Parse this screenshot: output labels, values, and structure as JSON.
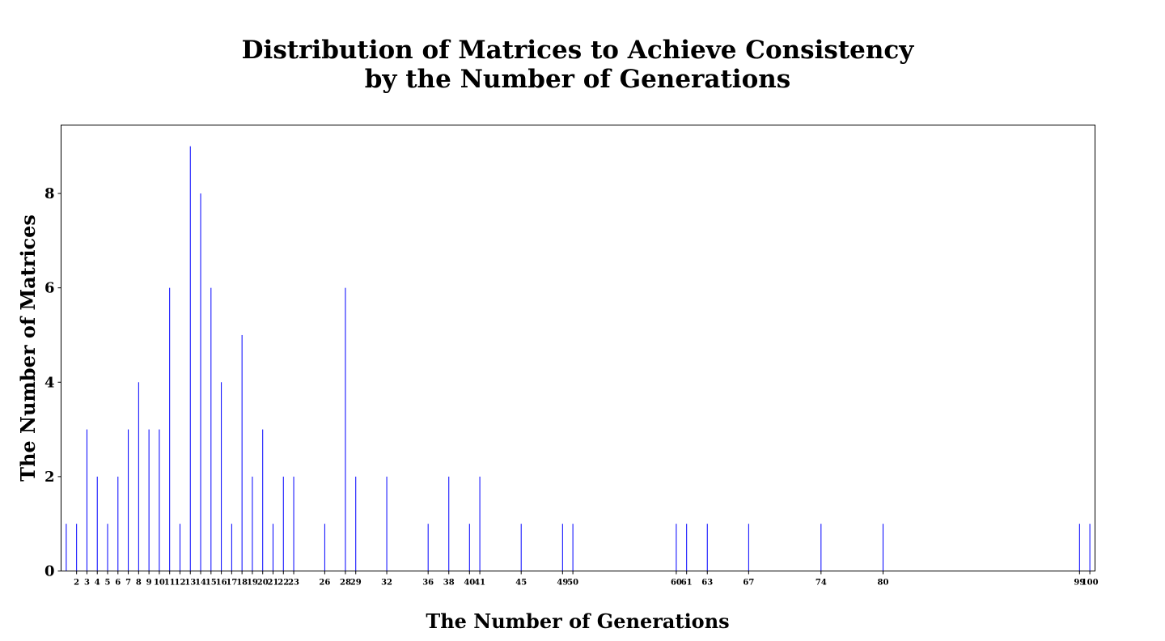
{
  "chart_data": {
    "type": "bar",
    "title_lines": [
      "Distribution of Matrices to Achieve Consistency",
      "by the Number of Generations"
    ],
    "xlabel": "The Number of Generations",
    "ylabel": "The Number of Matrices",
    "x": [
      1,
      2,
      3,
      4,
      5,
      6,
      7,
      8,
      9,
      10,
      11,
      12,
      13,
      14,
      15,
      16,
      17,
      18,
      19,
      20,
      21,
      22,
      23,
      26,
      28,
      29,
      32,
      36,
      38,
      40,
      41,
      45,
      49,
      50,
      60,
      61,
      63,
      67,
      74,
      80,
      99,
      100
    ],
    "values": [
      1,
      1,
      3,
      2,
      1,
      2,
      3,
      4,
      3,
      3,
      6,
      1,
      9,
      8,
      6,
      4,
      1,
      5,
      2,
      3,
      1,
      2,
      2,
      1,
      6,
      2,
      2,
      1,
      2,
      1,
      2,
      1,
      1,
      1,
      1,
      1,
      1,
      1,
      1,
      1,
      1,
      1
    ],
    "x_tick_labels": [
      2,
      3,
      4,
      5,
      6,
      7,
      8,
      9,
      10,
      11,
      12,
      13,
      14,
      15,
      16,
      17,
      18,
      19,
      20,
      21,
      22,
      23,
      26,
      28,
      29,
      32,
      36,
      38,
      40,
      41,
      45,
      49,
      50,
      60,
      61,
      63,
      67,
      74,
      80,
      99,
      100
    ],
    "y_ticks": [
      0,
      2,
      4,
      6,
      8
    ],
    "xlim": [
      0.5,
      100.5
    ],
    "ylim": [
      0,
      9.45
    ],
    "grid": false,
    "bar_color": "#0000ff"
  }
}
